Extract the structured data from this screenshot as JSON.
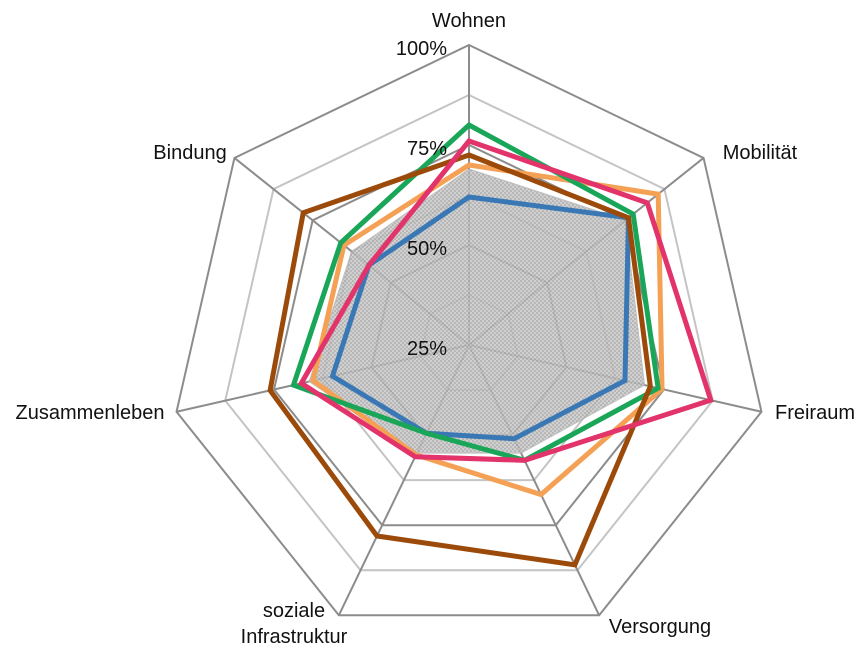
{
  "chart_data": {
    "type": "radar",
    "categories": [
      "Wohnen",
      "Mobilität",
      "Freiraum",
      "Versorgung",
      "soziale Infrastruktur",
      "Zusammenleben",
      "Bindung"
    ],
    "ylim": [
      25,
      100
    ],
    "yticks": [
      {
        "value": 25,
        "label": "25%"
      },
      {
        "value": 50,
        "label": "50%"
      },
      {
        "value": 75,
        "label": "75%"
      },
      {
        "value": 100,
        "label": "100%"
      }
    ],
    "minor_ticks": [
      37.5,
      62.5,
      87.5
    ],
    "series": [
      {
        "color": "#b3b3b3",
        "fill": true,
        "values": [
          69,
          75,
          70,
          55,
          55,
          66,
          62.5
        ]
      },
      {
        "color": "#3a78b5",
        "values": [
          62,
          76,
          65,
          51,
          49.5,
          60,
          57
        ]
      },
      {
        "color": "#f4a055",
        "values": [
          70,
          85.5,
          74.5,
          66.5,
          55.5,
          65,
          65
        ]
      },
      {
        "color": "#1aa658",
        "values": [
          80,
          77.5,
          73.5,
          57,
          49.5,
          70,
          66
        ]
      },
      {
        "color": "#9c4a0a",
        "values": [
          72.5,
          76,
          71.5,
          86,
          78,
          76,
          78
        ]
      },
      {
        "color": "#e2336b",
        "values": [
          76,
          82,
          87,
          57,
          56,
          68,
          57
        ]
      }
    ]
  }
}
